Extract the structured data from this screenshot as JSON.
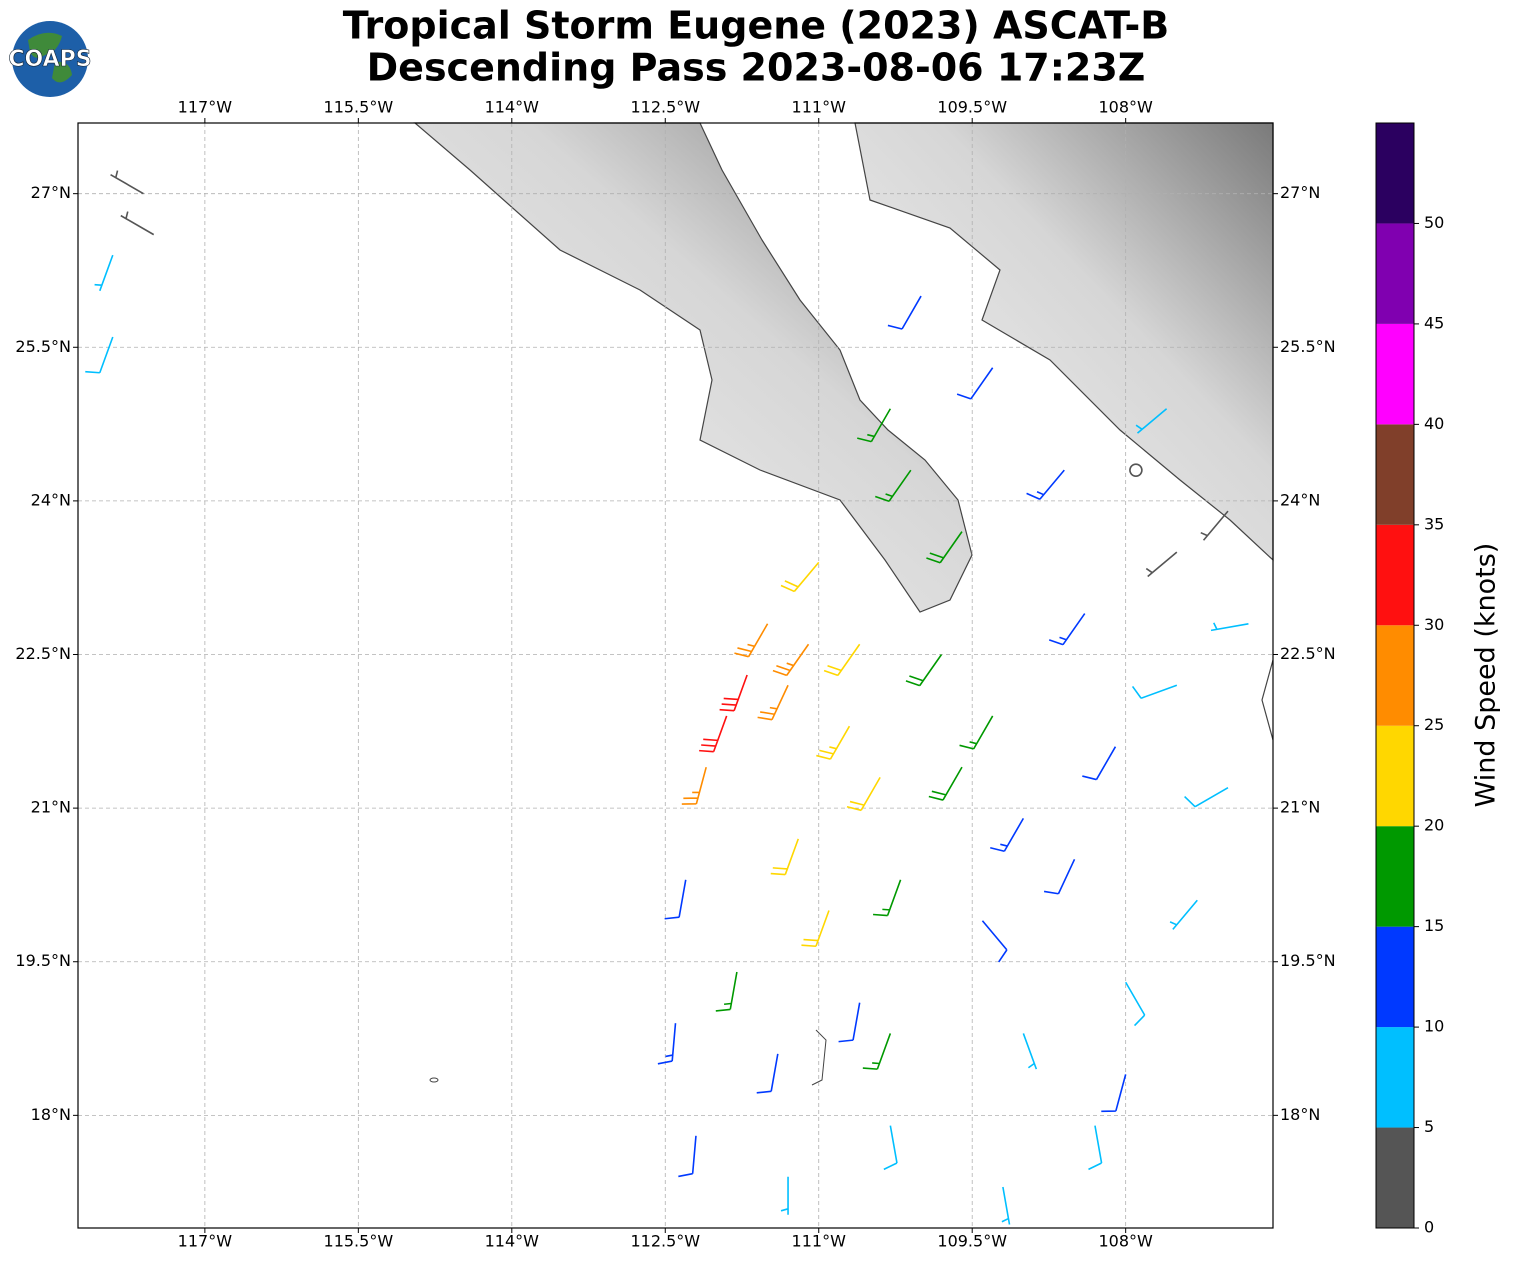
{
  "logo": "COAPS",
  "chart_data": {
    "type": "wind-barbs",
    "title": "Tropical Storm Eugene (2023) ASCAT-B",
    "subtitle": "Descending Pass 2023-08-06 17:23Z",
    "xlim": [
      -118.24,
      -106.56
    ],
    "ylim": [
      16.9,
      27.69
    ],
    "xticks": [
      {
        "value": -117,
        "label": "117°W"
      },
      {
        "value": -115.5,
        "label": "115.5°W"
      },
      {
        "value": -114,
        "label": "114°W"
      },
      {
        "value": -112.5,
        "label": "112.5°W"
      },
      {
        "value": -111,
        "label": "111°W"
      },
      {
        "value": -109.5,
        "label": "109.5°W"
      },
      {
        "value": -108,
        "label": "108°W"
      }
    ],
    "yticks": [
      {
        "value": 18,
        "label": "18°N"
      },
      {
        "value": 19.5,
        "label": "19.5°N"
      },
      {
        "value": 21,
        "label": "21°N"
      },
      {
        "value": 22.5,
        "label": "22.5°N"
      },
      {
        "value": 24,
        "label": "24°N"
      },
      {
        "value": 25.5,
        "label": "25.5°N"
      },
      {
        "value": 27,
        "label": "27°N"
      }
    ],
    "grid": true,
    "colorbar": {
      "label": "Wind Speed (knots)",
      "bounds": [
        0,
        5,
        10,
        15,
        20,
        25,
        30,
        35,
        40,
        45,
        50,
        55
      ],
      "colors": [
        "#555555",
        "#00bfff",
        "#0039ff",
        "#009900",
        "#ffd700",
        "#ff8c00",
        "#ff1010",
        "#803f2a",
        "#ff00ff",
        "#8000b0",
        "#2b0060"
      ],
      "ticks": [
        0,
        5,
        10,
        15,
        20,
        25,
        30,
        35,
        40,
        45,
        50
      ]
    },
    "barbs": [
      {
        "lon": -111.7,
        "lat": 22.3,
        "speed": 32,
        "dir": 200
      },
      {
        "lon": -111.9,
        "lat": 21.9,
        "speed": 31,
        "dir": 200
      },
      {
        "lon": -111.5,
        "lat": 22.8,
        "speed": 27,
        "dir": 210
      },
      {
        "lon": -111.3,
        "lat": 22.2,
        "speed": 26,
        "dir": 205
      },
      {
        "lon": -112.1,
        "lat": 21.4,
        "speed": 26,
        "dir": 195
      },
      {
        "lon": -111.1,
        "lat": 22.6,
        "speed": 27,
        "dir": 215
      },
      {
        "lon": -111.0,
        "lat": 23.4,
        "speed": 22,
        "dir": 220
      },
      {
        "lon": -110.6,
        "lat": 22.6,
        "speed": 22,
        "dir": 215
      },
      {
        "lon": -110.7,
        "lat": 21.8,
        "speed": 23,
        "dir": 210
      },
      {
        "lon": -111.2,
        "lat": 20.7,
        "speed": 21,
        "dir": 200
      },
      {
        "lon": -110.9,
        "lat": 20.0,
        "speed": 21,
        "dir": 200
      },
      {
        "lon": -110.4,
        "lat": 21.3,
        "speed": 22,
        "dir": 210
      },
      {
        "lon": -110.3,
        "lat": 24.9,
        "speed": 17,
        "dir": 210
      },
      {
        "lon": -110.1,
        "lat": 24.3,
        "speed": 17,
        "dir": 215
      },
      {
        "lon": -109.6,
        "lat": 23.7,
        "speed": 18,
        "dir": 215
      },
      {
        "lon": -109.8,
        "lat": 22.5,
        "speed": 18,
        "dir": 215
      },
      {
        "lon": -109.6,
        "lat": 21.4,
        "speed": 18,
        "dir": 210
      },
      {
        "lon": -110.2,
        "lat": 20.3,
        "speed": 16,
        "dir": 200
      },
      {
        "lon": -111.8,
        "lat": 19.4,
        "speed": 16,
        "dir": 190
      },
      {
        "lon": -110.3,
        "lat": 18.8,
        "speed": 16,
        "dir": 200
      },
      {
        "lon": -109.3,
        "lat": 21.9,
        "speed": 17,
        "dir": 210
      },
      {
        "lon": -110.0,
        "lat": 26.0,
        "speed": 12,
        "dir": 210
      },
      {
        "lon": -109.3,
        "lat": 25.3,
        "speed": 12,
        "dir": 215
      },
      {
        "lon": -108.6,
        "lat": 24.3,
        "speed": 13,
        "dir": 220
      },
      {
        "lon": -108.4,
        "lat": 22.9,
        "speed": 13,
        "dir": 215
      },
      {
        "lon": -108.1,
        "lat": 21.6,
        "speed": 12,
        "dir": 210
      },
      {
        "lon": -108.5,
        "lat": 20.5,
        "speed": 12,
        "dir": 205
      },
      {
        "lon": -109.4,
        "lat": 19.9,
        "speed": 11,
        "dir": 140
      },
      {
        "lon": -112.3,
        "lat": 20.3,
        "speed": 12,
        "dir": 190
      },
      {
        "lon": -112.4,
        "lat": 18.9,
        "speed": 13,
        "dir": 185
      },
      {
        "lon": -112.2,
        "lat": 17.8,
        "speed": 12,
        "dir": 185
      },
      {
        "lon": -111.4,
        "lat": 18.6,
        "speed": 11,
        "dir": 190
      },
      {
        "lon": -110.6,
        "lat": 19.1,
        "speed": 12,
        "dir": 190
      },
      {
        "lon": -108.0,
        "lat": 18.4,
        "speed": 11,
        "dir": 195
      },
      {
        "lon": -109.0,
        "lat": 20.9,
        "speed": 13,
        "dir": 210
      },
      {
        "lon": -107.5,
        "lat": 22.2,
        "speed": 8,
        "dir": 250
      },
      {
        "lon": -107.0,
        "lat": 21.2,
        "speed": 8,
        "dir": 240
      },
      {
        "lon": -107.3,
        "lat": 20.1,
        "speed": 7,
        "dir": 220
      },
      {
        "lon": -108.0,
        "lat": 19.3,
        "speed": 8,
        "dir": 150
      },
      {
        "lon": -109.0,
        "lat": 18.8,
        "speed": 7,
        "dir": 160
      },
      {
        "lon": -110.3,
        "lat": 17.9,
        "speed": 8,
        "dir": 170
      },
      {
        "lon": -111.3,
        "lat": 17.4,
        "speed": 7,
        "dir": 180
      },
      {
        "lon": -109.2,
        "lat": 17.3,
        "speed": 6,
        "dir": 170
      },
      {
        "lon": -108.3,
        "lat": 17.9,
        "speed": 8,
        "dir": 170
      },
      {
        "lon": -107.6,
        "lat": 24.9,
        "speed": 7,
        "dir": 230
      },
      {
        "lon": -117.9,
        "lat": 26.4,
        "speed": 7,
        "dir": 200
      },
      {
        "lon": -117.9,
        "lat": 25.6,
        "speed": 8,
        "dir": 200
      },
      {
        "lon": -106.8,
        "lat": 22.8,
        "speed": 7,
        "dir": 260
      },
      {
        "lon": -107.5,
        "lat": 23.5,
        "speed": 3,
        "dir": 230
      },
      {
        "lon": -107.9,
        "lat": 24.3,
        "speed": 2,
        "dir": 240
      },
      {
        "lon": -117.6,
        "lat": 27.0,
        "speed": 3,
        "dir": 300
      },
      {
        "lon": -117.5,
        "lat": 26.6,
        "speed": 4,
        "dir": 300
      },
      {
        "lon": -107.0,
        "lat": 23.9,
        "speed": 4,
        "dir": 220
      }
    ]
  }
}
